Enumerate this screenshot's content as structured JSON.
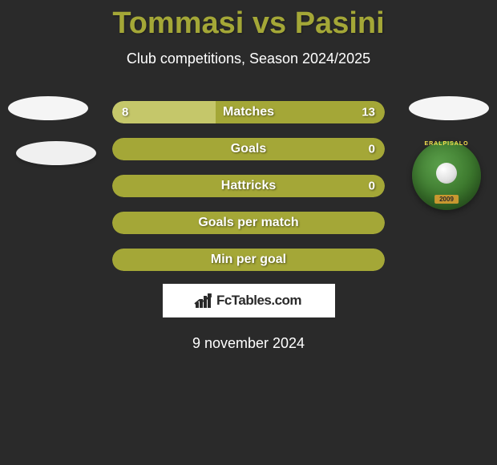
{
  "header": {
    "title": "Tommasi vs Pasini",
    "subtitle": "Club competitions, Season 2024/2025",
    "title_color": "#a4a737"
  },
  "stats": [
    {
      "label": "Matches",
      "left_value": "8",
      "right_value": "13",
      "left_pct": 38,
      "left_color": "#c5c76a",
      "right_color": "#a4a737",
      "show_left": true,
      "show_right": true
    },
    {
      "label": "Goals",
      "left_value": "",
      "right_value": "0",
      "left_pct": 0,
      "left_color": "#a4a737",
      "right_color": "#a4a737",
      "show_left": false,
      "show_right": true
    },
    {
      "label": "Hattricks",
      "left_value": "",
      "right_value": "0",
      "left_pct": 0,
      "left_color": "#a4a737",
      "right_color": "#a4a737",
      "show_left": false,
      "show_right": true
    },
    {
      "label": "Goals per match",
      "left_value": "",
      "right_value": "",
      "left_pct": 0,
      "left_color": "#a4a737",
      "right_color": "#a4a737",
      "show_left": false,
      "show_right": false
    },
    {
      "label": "Min per goal",
      "left_value": "",
      "right_value": "",
      "left_pct": 0,
      "left_color": "#a4a737",
      "right_color": "#a4a737",
      "show_left": false,
      "show_right": false
    }
  ],
  "badge": {
    "top_text": "ERALPISALO",
    "year": "2009",
    "bg_color": "#3d7a2e"
  },
  "footer": {
    "brand": "FcTables.com",
    "date": "9 november 2024"
  },
  "colors": {
    "background": "#2a2a2a",
    "olive_light": "#c5c76a",
    "olive_dark": "#a4a737"
  }
}
